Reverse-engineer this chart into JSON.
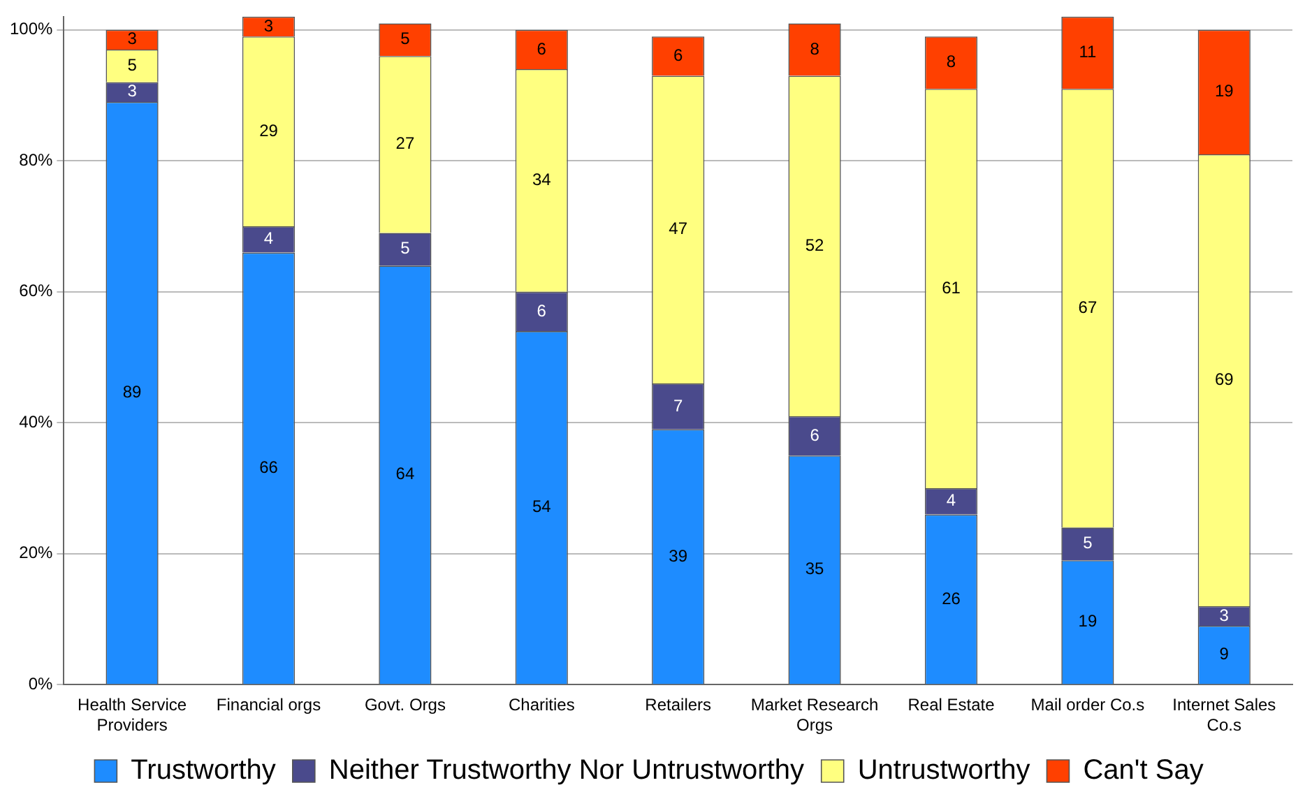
{
  "chart_data": {
    "type": "bar",
    "stacked": true,
    "data_labels": true,
    "grid": "y",
    "legend": "bottom",
    "categories": [
      "Health Service Providers",
      "Financial orgs",
      "Govt. Orgs",
      "Charities",
      "Retailers",
      "Market Research Orgs",
      "Real Estate",
      "Mail order Co.s",
      "Internet Sales Co.s"
    ],
    "ylim": [
      0,
      102
    ],
    "yticks": [
      {
        "value": 0,
        "label": "0%"
      },
      {
        "value": 20,
        "label": "20%"
      },
      {
        "value": 40,
        "label": "40%"
      },
      {
        "value": 60,
        "label": "60%"
      },
      {
        "value": 80,
        "label": "80%"
      },
      {
        "value": 100,
        "label": "100%"
      }
    ],
    "series": [
      {
        "name": "Trustworthy",
        "color": "#1e8cff",
        "values": [
          89,
          66,
          64,
          54,
          39,
          35,
          26,
          19,
          9
        ]
      },
      {
        "name": "Neither Trustworthy Nor Untrustworthy",
        "color": "#4a4a8c",
        "values": [
          3,
          4,
          5,
          6,
          7,
          6,
          4,
          5,
          3
        ]
      },
      {
        "name": "Untrustworthy",
        "color": "#ffff80",
        "values": [
          5,
          29,
          27,
          34,
          47,
          52,
          61,
          67,
          69
        ]
      },
      {
        "name": "Can't Say",
        "color": "#ff4000",
        "values": [
          3,
          3,
          5,
          6,
          6,
          8,
          8,
          11,
          19
        ]
      }
    ]
  }
}
